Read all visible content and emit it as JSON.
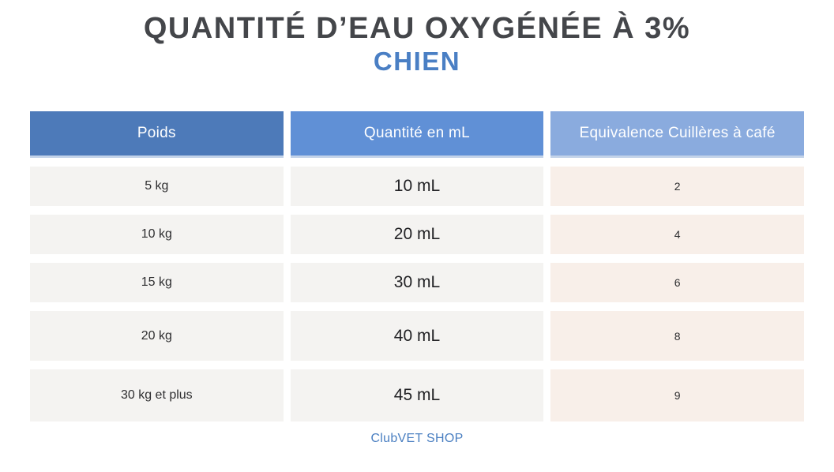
{
  "page": {
    "title_line1": "QUANTITÉ D’EAU OXYGÉNÉE À 3%",
    "title_line2": "CHIEN",
    "footer": "ClubVET SHOP"
  },
  "colors": {
    "title_dark": "#44464a",
    "accent_blue": "#4a7fc4",
    "header_col1_blue": "#4d7ab9",
    "header_col2_blue": "#6090d6",
    "header_col3_blue": "#8aabde",
    "cell_gray": "#f4f3f1",
    "cell_beige": "#f8efe9",
    "footer_blue": "#4a7fc1"
  },
  "chart_data": {
    "type": "table",
    "title": "QUANTITÉ D’EAU OXYGÉNÉE À 3%",
    "subtitle": "CHIEN",
    "columns": [
      "Poids",
      "Quantité en mL",
      "Equivalence Cuillères à café"
    ],
    "rows": [
      [
        "5 kg",
        "10 mL",
        "2"
      ],
      [
        "10 kg",
        "20 mL",
        "4"
      ],
      [
        "15 kg",
        "30 mL",
        "6"
      ],
      [
        "20 kg",
        "40 mL",
        "8"
      ],
      [
        "30 kg et plus",
        "45 mL",
        "9"
      ]
    ],
    "annotation": "ClubVET SHOP"
  }
}
